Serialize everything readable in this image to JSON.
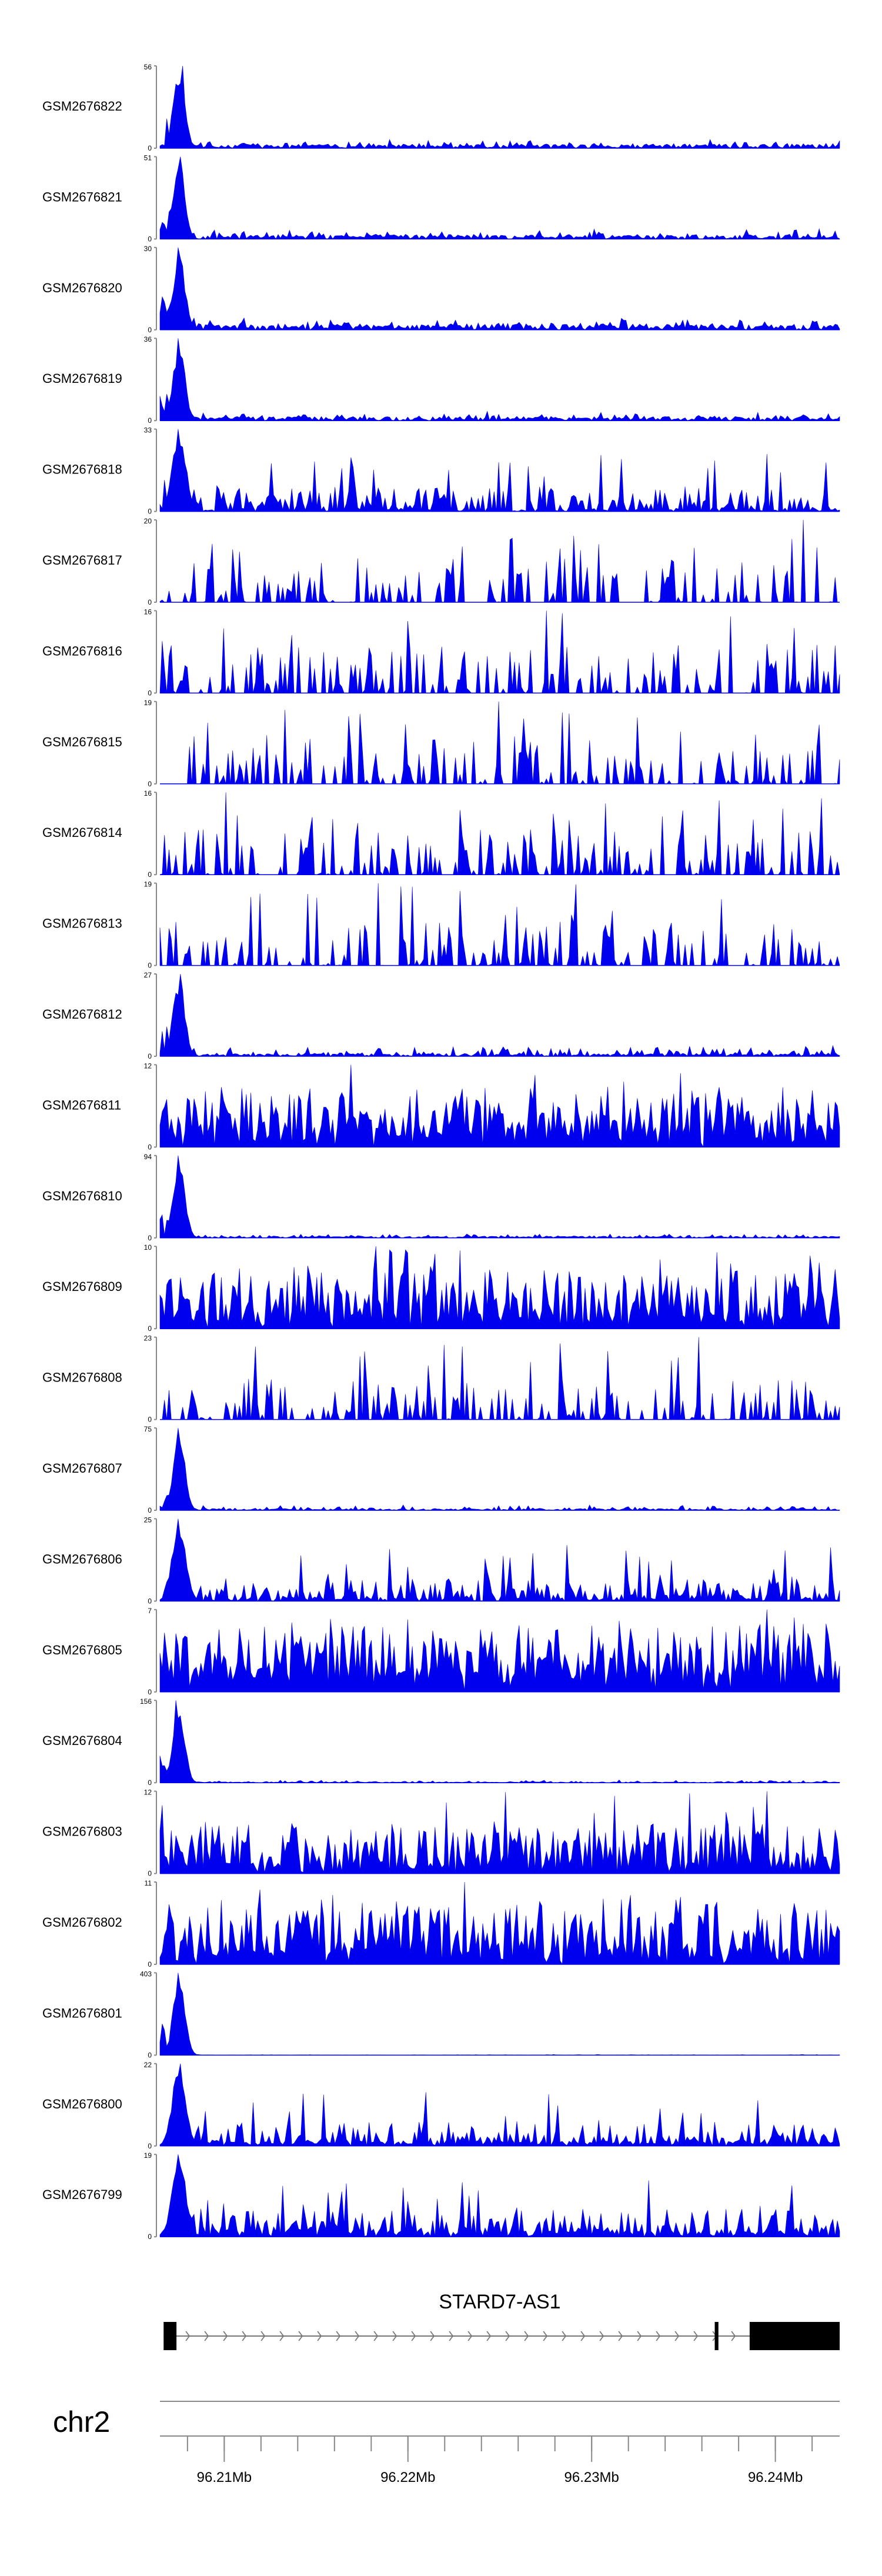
{
  "chart_data": {
    "type": "area",
    "title": "",
    "xlabel": "",
    "ylabel": "",
    "xlim": [
      96.2065,
      96.2435
    ],
    "color": "#0000ee",
    "tracks": [
      {
        "name": "GSM2676822",
        "ymax": "56",
        "ymin": "0",
        "peak": 56,
        "profile": "sharp",
        "base": 0.05,
        "noise": 0.07,
        "seed": 22
      },
      {
        "name": "GSM2676821",
        "ymax": "51",
        "ymin": "0",
        "peak": 51,
        "profile": "sharp",
        "base": 0.05,
        "noise": 0.08,
        "seed": 21
      },
      {
        "name": "GSM2676820",
        "ymax": "30",
        "ymin": "0",
        "peak": 30,
        "profile": "sharp",
        "base": 0.07,
        "noise": 0.09,
        "seed": 20
      },
      {
        "name": "GSM2676819",
        "ymax": "36",
        "ymin": "0",
        "peak": 36,
        "profile": "sharp",
        "base": 0.05,
        "noise": 0.07,
        "seed": 19
      },
      {
        "name": "GSM2676818",
        "ymax": "33",
        "ymin": "0",
        "peak": 33,
        "profile": "spiky",
        "base": 0.02,
        "noise": 0.3,
        "seed": 18
      },
      {
        "name": "GSM2676817",
        "ymax": "20",
        "ymin": "0",
        "peak": 20,
        "profile": "sparse",
        "base": 0.0,
        "noise": 0.55,
        "seed": 17
      },
      {
        "name": "GSM2676816",
        "ymax": "16",
        "ymin": "0",
        "peak": 16,
        "profile": "sparse",
        "base": 0.0,
        "noise": 0.6,
        "seed": 16
      },
      {
        "name": "GSM2676815",
        "ymax": "19",
        "ymin": "0",
        "peak": 19,
        "profile": "sparse",
        "base": 0.0,
        "noise": 0.6,
        "seed": 15
      },
      {
        "name": "GSM2676814",
        "ymax": "16",
        "ymin": "0",
        "peak": 16,
        "profile": "sparse",
        "base": 0.0,
        "noise": 0.55,
        "seed": 14
      },
      {
        "name": "GSM2676813",
        "ymax": "19",
        "ymin": "0",
        "peak": 19,
        "profile": "sparse",
        "base": 0.0,
        "noise": 0.55,
        "seed": 13
      },
      {
        "name": "GSM2676812",
        "ymax": "27",
        "ymin": "0",
        "peak": 27,
        "profile": "sharp",
        "base": 0.03,
        "noise": 0.12,
        "seed": 12
      },
      {
        "name": "GSM2676811",
        "ymax": "12",
        "ymin": "0",
        "peak": 12,
        "profile": "dense",
        "base": 0.2,
        "noise": 0.6,
        "seed": 11
      },
      {
        "name": "GSM2676810",
        "ymax": "94",
        "ymin": "0",
        "peak": 94,
        "profile": "sharp",
        "base": 0.02,
        "noise": 0.04,
        "seed": 10
      },
      {
        "name": "GSM2676809",
        "ymax": "10",
        "ymin": "0",
        "peak": 10,
        "profile": "dense",
        "base": 0.15,
        "noise": 0.65,
        "seed": 9
      },
      {
        "name": "GSM2676808",
        "ymax": "23",
        "ymin": "0",
        "peak": 23,
        "profile": "sparse",
        "base": 0.0,
        "noise": 0.5,
        "seed": 8
      },
      {
        "name": "GSM2676807",
        "ymax": "75",
        "ymin": "0",
        "peak": 75,
        "profile": "sharp",
        "base": 0.02,
        "noise": 0.05,
        "seed": 7
      },
      {
        "name": "GSM2676806",
        "ymax": "25",
        "ymin": "0",
        "peak": 25,
        "profile": "spiky",
        "base": 0.04,
        "noise": 0.25,
        "seed": 6
      },
      {
        "name": "GSM2676805",
        "ymax": "7",
        "ymin": "0",
        "peak": 7,
        "profile": "dense",
        "base": 0.25,
        "noise": 0.7,
        "seed": 5
      },
      {
        "name": "GSM2676804",
        "ymax": "156",
        "ymin": "0",
        "peak": 156,
        "profile": "sharp",
        "base": 0.01,
        "noise": 0.03,
        "seed": 4
      },
      {
        "name": "GSM2676803",
        "ymax": "12",
        "ymin": "0",
        "peak": 12,
        "profile": "dense",
        "base": 0.12,
        "noise": 0.55,
        "seed": 3
      },
      {
        "name": "GSM2676802",
        "ymax": "11",
        "ymin": "0",
        "peak": 11,
        "profile": "dense",
        "base": 0.15,
        "noise": 0.65,
        "seed": 2
      },
      {
        "name": "GSM2676801",
        "ymax": "403",
        "ymin": "0",
        "peak": 403,
        "profile": "sharp",
        "base": 0.003,
        "noise": 0.006,
        "seed": 1
      },
      {
        "name": "GSM2676800",
        "ymax": "22",
        "ymin": "0",
        "peak": 22,
        "profile": "spiky",
        "base": 0.06,
        "noise": 0.25,
        "seed": 100
      },
      {
        "name": "GSM2676799",
        "ymax": "19",
        "ymin": "0",
        "peak": 19,
        "profile": "spiky",
        "base": 0.08,
        "noise": 0.3,
        "seed": 99
      }
    ],
    "gene": {
      "name": "STARD7-AS1",
      "start": 96.2067,
      "end": 96.2435,
      "strand": "+",
      "exons": [
        [
          96.2067,
          96.2074
        ],
        [
          96.2367,
          96.2369
        ],
        [
          96.2386,
          96.2435
        ]
      ]
    },
    "chromosome": "chr2",
    "axis": {
      "major_ticks": [
        96.21,
        96.22,
        96.23,
        96.24
      ],
      "tick_labels": [
        "96.21Mb",
        "96.22Mb",
        "96.23Mb",
        "96.24Mb"
      ],
      "minor_step": 0.002
    }
  }
}
